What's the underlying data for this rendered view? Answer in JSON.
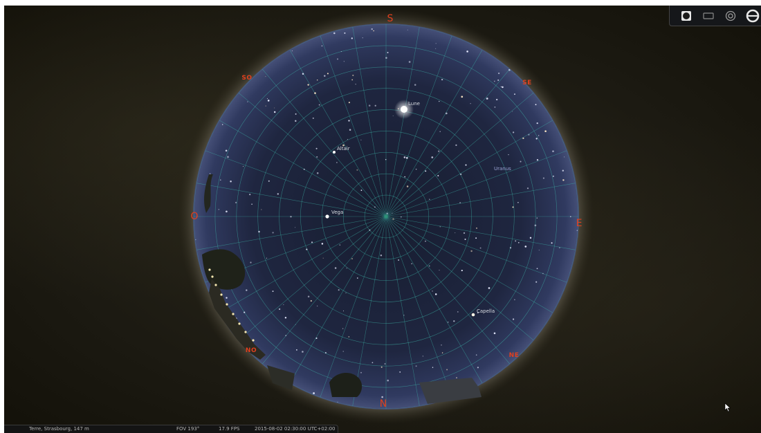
{
  "cardinals": {
    "S": "S",
    "SE": "SE",
    "E": "E",
    "NE": "NE",
    "N": "N",
    "NO": "NO",
    "O": "O",
    "SO": "SO"
  },
  "objects": [
    {
      "name": "Lune",
      "kind": "moon"
    },
    {
      "name": "Altair",
      "kind": "star"
    },
    {
      "name": "Uranus",
      "kind": "planet"
    },
    {
      "name": "Vega",
      "kind": "star"
    },
    {
      "name": "Capella",
      "kind": "star"
    }
  ],
  "toolbar": {
    "buttons": [
      {
        "icon": "ground-toggle-icon"
      },
      {
        "icon": "atmosphere-toggle-icon"
      },
      {
        "icon": "fisheye-projection-icon"
      },
      {
        "icon": "equatorial-grid-icon"
      }
    ]
  },
  "status": {
    "location": "Terre, Strasbourg, 147 m",
    "fov": "FOV 193°",
    "fps": "17.9 FPS",
    "datetime": "2015-08-02 02:30:00 UTC+02:00"
  },
  "colors": {
    "cardinal": "#e0401e",
    "grid": "#3fbfb0",
    "sky_center": "#1b2236",
    "sky_edge": "#36406a"
  }
}
